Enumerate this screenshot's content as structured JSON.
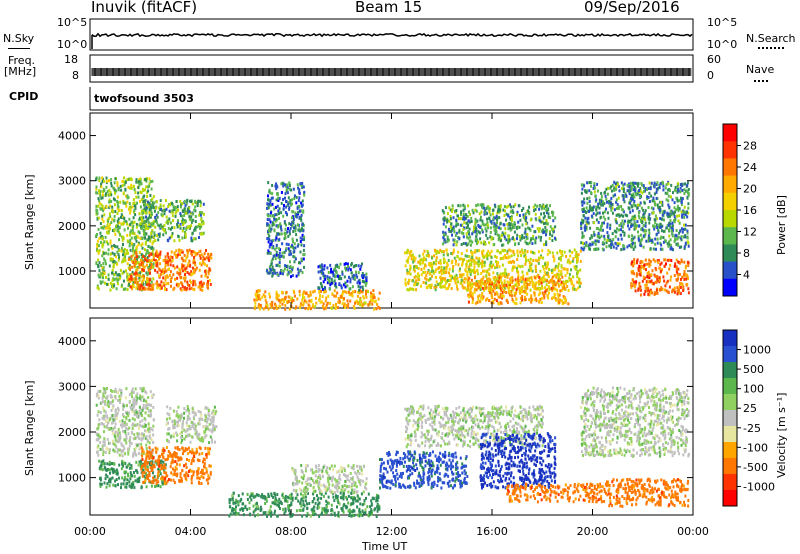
{
  "header": {
    "site": "Inuvik (fitACF)",
    "beam": "Beam 15",
    "date": "09/Sep/2016"
  },
  "top_panels": {
    "nsky_label": "N.Sky",
    "nsearch_label": "N.Search",
    "nsky_ticks": [
      "10^5",
      "10^0"
    ],
    "nsearch_ticks": [
      "10^5",
      "10^0"
    ],
    "freq_label_line1": "Freq.",
    "freq_label_line2": "[MHz]",
    "freq_ticks": [
      "18",
      "8"
    ],
    "nave_ticks": [
      "60",
      "0"
    ],
    "nave_label": "Nave",
    "cpid_label": "CPID",
    "cpid_value": "twofsound 3503"
  },
  "colorbars": {
    "power": {
      "label": "Power [dB]",
      "ticks": [
        "28",
        "24",
        "20",
        "16",
        "12",
        "8",
        "4"
      ],
      "colors": [
        "#ff0000",
        "#ff3300",
        "#ff7700",
        "#ffaa00",
        "#f5d000",
        "#b8d800",
        "#5cb84c",
        "#2e8b57",
        "#2850c8",
        "#0000ff"
      ]
    },
    "velocity": {
      "label": "Velocity [m s⁻¹]",
      "ticks": [
        "1000",
        "500",
        "100",
        "25",
        "-25",
        "-100",
        "-500",
        "-1000"
      ],
      "colors": [
        "#1830c0",
        "#2850d0",
        "#2e8b57",
        "#5cb84c",
        "#90d060",
        "#c0c0c0",
        "#e6e6a0",
        "#ffa500",
        "#ff7700",
        "#ff3300",
        "#ff0000"
      ]
    }
  },
  "chart_data": [
    {
      "type": "heatmap",
      "title": "Power",
      "ylabel": "Slant Range [km]",
      "xlabel": "",
      "y_ticks": [
        "1000",
        "2000",
        "3000",
        "4000"
      ],
      "ylim": [
        180,
        4500
      ],
      "xlim": [
        "00:00",
        "24:00"
      ],
      "regions": [
        {
          "t0": 0.2,
          "t1": 2.5,
          "r0": 600,
          "r1": 3100,
          "level": 14
        },
        {
          "t0": 1.5,
          "t1": 4.8,
          "r0": 600,
          "r1": 1500,
          "level": 25
        },
        {
          "t0": 2.0,
          "t1": 4.5,
          "r0": 1700,
          "r1": 2600,
          "level": 12
        },
        {
          "t0": 6.5,
          "t1": 11.5,
          "r0": 180,
          "r1": 600,
          "level": 22
        },
        {
          "t0": 7.0,
          "t1": 8.5,
          "r0": 900,
          "r1": 3000,
          "level": 9
        },
        {
          "t0": 9.0,
          "t1": 11.0,
          "r0": 600,
          "r1": 1200,
          "level": 8
        },
        {
          "t0": 12.5,
          "t1": 19.5,
          "r0": 600,
          "r1": 1500,
          "level": 18
        },
        {
          "t0": 14.0,
          "t1": 18.5,
          "r0": 1600,
          "r1": 2500,
          "level": 11
        },
        {
          "t0": 15.0,
          "t1": 19.0,
          "r0": 300,
          "r1": 900,
          "level": 23
        },
        {
          "t0": 19.5,
          "t1": 23.8,
          "r0": 1500,
          "r1": 3000,
          "level": 10
        },
        {
          "t0": 21.5,
          "t1": 23.8,
          "r0": 500,
          "r1": 1300,
          "level": 26
        }
      ],
      "xlabel_unit": ""
    },
    {
      "type": "heatmap",
      "title": "Velocity",
      "ylabel": "Slant Range [km]",
      "xlabel": "Time UT",
      "x_ticks": [
        "00:00",
        "04:00",
        "08:00",
        "12:00",
        "16:00",
        "20:00",
        "00:00"
      ],
      "y_ticks": [
        "1000",
        "2000",
        "3000",
        "4000"
      ],
      "ylim": [
        180,
        4500
      ],
      "xlim": [
        "00:00",
        "24:00"
      ],
      "regions": [
        {
          "t0": 0.2,
          "t1": 2.5,
          "r0": 1500,
          "r1": 3000,
          "level": 0
        },
        {
          "t0": 0.3,
          "t1": 3.0,
          "r0": 800,
          "r1": 1400,
          "level": 100
        },
        {
          "t0": 2.0,
          "t1": 4.8,
          "r0": 900,
          "r1": 1700,
          "level": -500
        },
        {
          "t0": 3.0,
          "t1": 5.0,
          "r0": 1800,
          "r1": 2600,
          "level": 0
        },
        {
          "t0": 5.5,
          "t1": 11.5,
          "r0": 180,
          "r1": 700,
          "level": 100
        },
        {
          "t0": 8.0,
          "t1": 11.0,
          "r0": 700,
          "r1": 1300,
          "level": 0
        },
        {
          "t0": 11.5,
          "t1": 15.0,
          "r0": 800,
          "r1": 1600,
          "level": 500
        },
        {
          "t0": 12.5,
          "t1": 18.0,
          "r0": 1700,
          "r1": 2600,
          "level": 0
        },
        {
          "t0": 15.5,
          "t1": 18.5,
          "r0": 800,
          "r1": 2000,
          "level": 1000
        },
        {
          "t0": 16.5,
          "t1": 20.5,
          "r0": 500,
          "r1": 900,
          "level": -500
        },
        {
          "t0": 19.5,
          "t1": 23.8,
          "r0": 1500,
          "r1": 3000,
          "level": 0
        },
        {
          "t0": 20.5,
          "t1": 23.8,
          "r0": 400,
          "r1": 1000,
          "level": -500
        }
      ]
    }
  ]
}
